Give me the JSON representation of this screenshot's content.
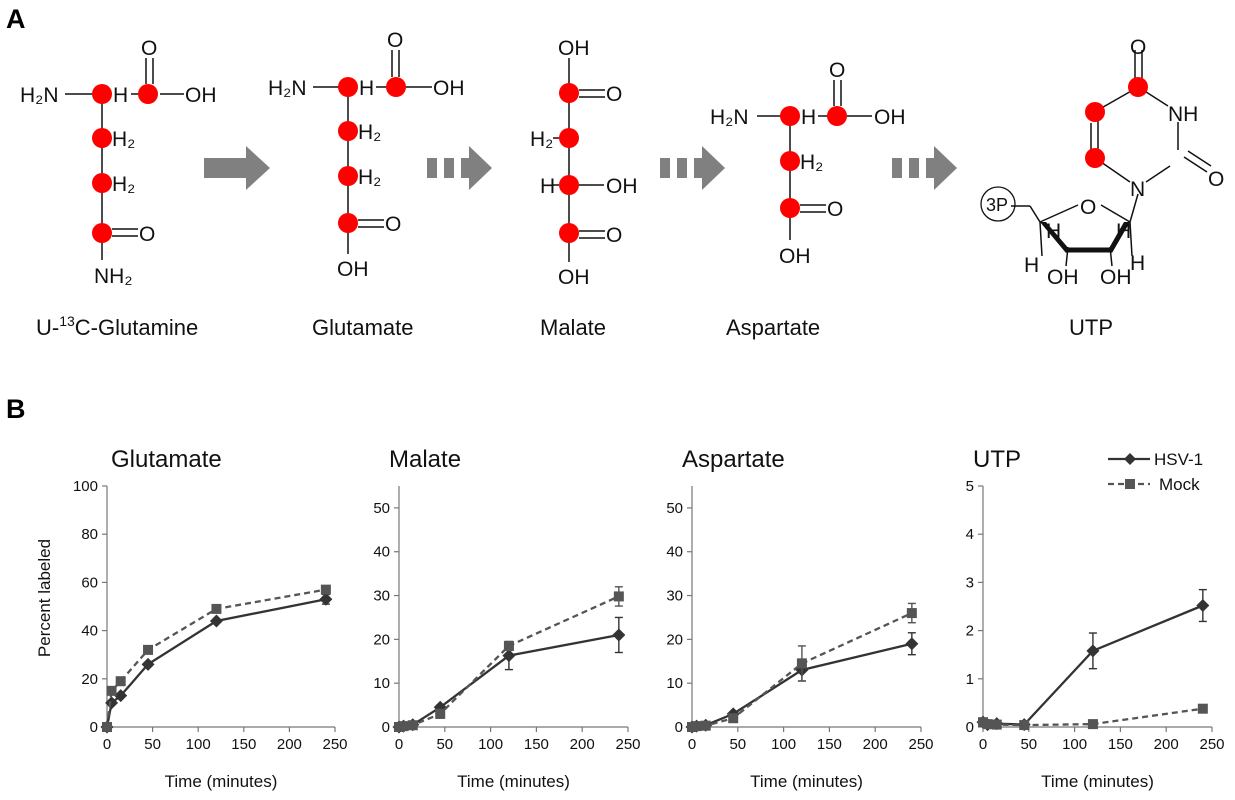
{
  "panel_a": {
    "label": "A",
    "molecules": [
      {
        "name": "U-13C-Glutamine",
        "prefix": "U-",
        "sup": "13",
        "suffix": "C-Glutamine"
      },
      {
        "name": "Glutamate"
      },
      {
        "name": "Malate"
      },
      {
        "name": "Aspartate"
      },
      {
        "name": "UTP"
      }
    ],
    "atom_labels": {
      "amine": "H₂N",
      "h": "H",
      "h2": "H₂",
      "oh": "OH",
      "o": "O",
      "nh2": "NH₂",
      "nh": "NH",
      "n": "N",
      "phosphate": "3P"
    },
    "labeled_carbon_color": "#ff0000",
    "arrow_color": "#808080"
  },
  "panel_b": {
    "label": "B",
    "xlabel": "Time (minutes)",
    "ylabel": "Percent labeled",
    "legend": [
      {
        "name": "HSV-1",
        "style": "solid",
        "marker": "diamond",
        "color": "#333333"
      },
      {
        "name": "Mock",
        "style": "dashed",
        "marker": "square",
        "color": "#555555"
      }
    ]
  },
  "chart_data": [
    {
      "type": "line",
      "title": "Glutamate",
      "xlabel": "Time (minutes)",
      "ylabel": "Percent labeled",
      "xlim": [
        0,
        250
      ],
      "ylim": [
        0,
        100
      ],
      "xticks": [
        0,
        50,
        100,
        150,
        200,
        250
      ],
      "yticks": [
        0,
        20,
        40,
        60,
        80,
        100
      ],
      "series": [
        {
          "name": "HSV-1",
          "x": [
            0,
            5,
            15,
            45,
            120,
            240
          ],
          "y": [
            0,
            10,
            13,
            26,
            44,
            53
          ],
          "err": [
            0,
            0,
            0,
            0,
            0,
            2
          ]
        },
        {
          "name": "Mock",
          "x": [
            0,
            5,
            15,
            45,
            120,
            240
          ],
          "y": [
            0,
            15,
            19,
            32,
            49,
            57
          ],
          "err": [
            0,
            0,
            0,
            0,
            0,
            1
          ]
        }
      ]
    },
    {
      "type": "line",
      "title": "Malate",
      "xlabel": "Time (minutes)",
      "xlim": [
        0,
        250
      ],
      "ylim": [
        0,
        55
      ],
      "xticks": [
        0,
        50,
        100,
        150,
        200,
        250
      ],
      "yticks": [
        0,
        10,
        20,
        30,
        40,
        50
      ],
      "series": [
        {
          "name": "HSV-1",
          "x": [
            0,
            5,
            15,
            45,
            120,
            240
          ],
          "y": [
            0,
            0.2,
            0.5,
            4.5,
            16.3,
            21
          ],
          "err": [
            0,
            0,
            0,
            0.5,
            3.2,
            4
          ]
        },
        {
          "name": "Mock",
          "x": [
            0,
            5,
            15,
            45,
            120,
            240
          ],
          "y": [
            0,
            0.2,
            0.4,
            3,
            18.5,
            29.8
          ],
          "err": [
            0,
            0,
            0,
            1,
            1,
            2.2
          ]
        }
      ]
    },
    {
      "type": "line",
      "title": "Aspartate",
      "xlabel": "Time (minutes)",
      "xlim": [
        0,
        250
      ],
      "ylim": [
        0,
        55
      ],
      "xticks": [
        0,
        50,
        100,
        150,
        200,
        250
      ],
      "yticks": [
        0,
        10,
        20,
        30,
        40,
        50
      ],
      "series": [
        {
          "name": "HSV-1",
          "x": [
            0,
            5,
            15,
            45,
            120,
            240
          ],
          "y": [
            0,
            0.2,
            0.4,
            3,
            13,
            19
          ],
          "err": [
            0,
            0,
            0,
            0.3,
            2.5,
            2.5
          ]
        },
        {
          "name": "Mock",
          "x": [
            0,
            5,
            15,
            45,
            120,
            240
          ],
          "y": [
            0,
            0.2,
            0.3,
            2,
            14.5,
            26
          ],
          "err": [
            0,
            0,
            0,
            0.3,
            4,
            2.2
          ]
        }
      ]
    },
    {
      "type": "line",
      "title": "UTP",
      "xlabel": "Time (minutes)",
      "xlim": [
        0,
        250
      ],
      "ylim": [
        0,
        5
      ],
      "xticks": [
        0,
        50,
        100,
        150,
        200,
        250
      ],
      "yticks": [
        0,
        1,
        2,
        3,
        4,
        5
      ],
      "series": [
        {
          "name": "HSV-1",
          "x": [
            0,
            5,
            15,
            45,
            120,
            240
          ],
          "y": [
            0.1,
            0.05,
            0.07,
            0.05,
            1.58,
            2.52
          ],
          "err": [
            0,
            0,
            0,
            0,
            0.37,
            0.33
          ]
        },
        {
          "name": "Mock",
          "x": [
            0,
            5,
            15,
            45,
            120,
            240
          ],
          "y": [
            0.1,
            0.06,
            0.05,
            0.04,
            0.06,
            0.38
          ],
          "err": [
            0,
            0,
            0,
            0,
            0,
            0
          ]
        }
      ]
    }
  ]
}
